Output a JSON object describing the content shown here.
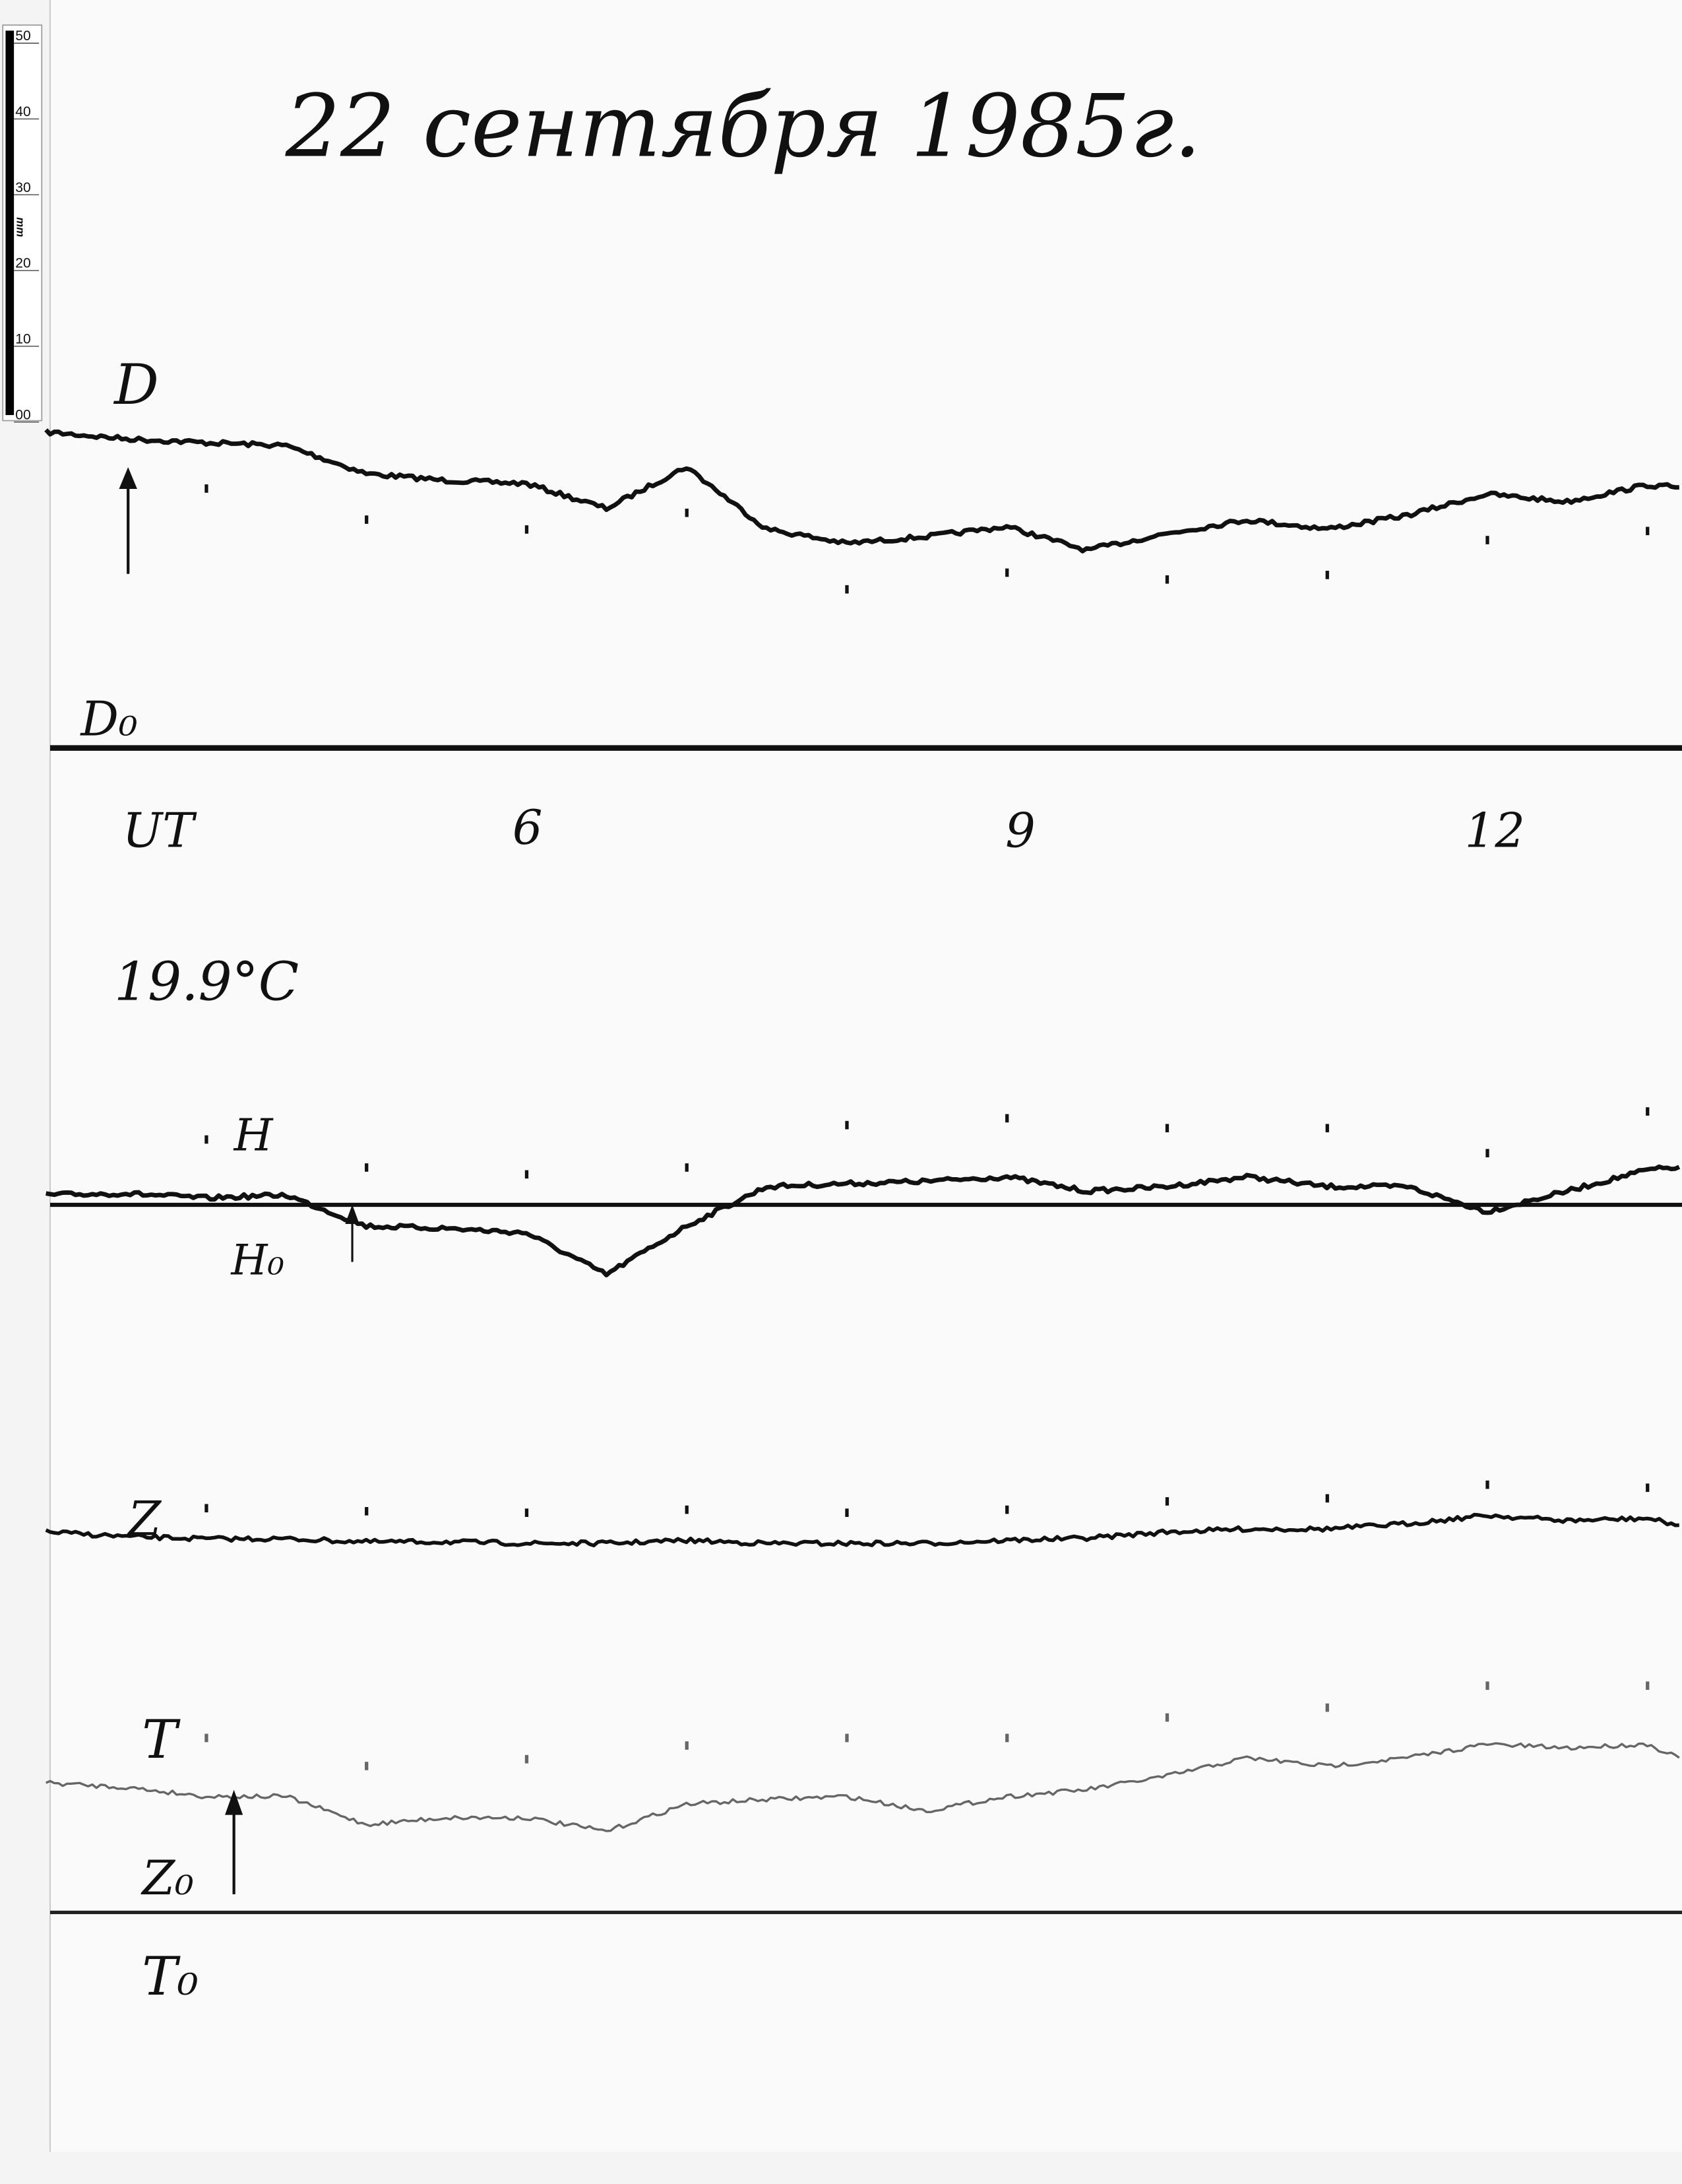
{
  "title": "22 сентября 1985г.",
  "ruler": {
    "ticks": [
      "50",
      "40",
      "30",
      "20",
      "10",
      "00"
    ],
    "unit": "mm"
  },
  "labels": {
    "D": "D",
    "D0": "D₀",
    "UT": "UT",
    "temp": "19.9°C",
    "H": "H",
    "H0": "H₀",
    "Z": "Z",
    "T": "T",
    "Z0": "Z₀",
    "T0": "T₀"
  },
  "chart_data": {
    "type": "line",
    "title": "22 сентября 1985г.",
    "xlabel": "UT",
    "x_ticks": [
      {
        "label": "6",
        "value": 6
      },
      {
        "label": "9",
        "value": 9
      },
      {
        "label": "12",
        "value": 12
      }
    ],
    "xlim": [
      3.0,
      13.2
    ],
    "y_unit": "mm",
    "hour_marks": [
      4,
      5,
      6,
      7,
      8,
      9,
      10,
      11,
      12,
      13
    ],
    "x": [
      3.0,
      3.5,
      4,
      4.5,
      5,
      5.5,
      6,
      6.5,
      7,
      7.5,
      8,
      8.5,
      9,
      9.5,
      10,
      10.5,
      11,
      11.5,
      12,
      12.5,
      13,
      13.2
    ],
    "series": [
      {
        "name": "D",
        "baseline": "D₀",
        "color": "#111111",
        "values": [
          41.7,
          40.8,
          40.3,
          39.9,
          36.2,
          35.3,
          34.9,
          31.6,
          37.1,
          28.9,
          27.0,
          27.9,
          29.2,
          26.1,
          28.3,
          30.1,
          28.9,
          30.7,
          33.5,
          32.5,
          34.7,
          34.4
        ]
      },
      {
        "name": "H",
        "baseline": "H₀",
        "color": "#111111",
        "values": [
          1.3,
          1.5,
          0.9,
          1.3,
          -2.8,
          -3.1,
          -3.7,
          -9.2,
          -2.8,
          2.4,
          2.8,
          3.1,
          3.7,
          1.8,
          2.4,
          3.7,
          2.4,
          2.4,
          -0.9,
          1.8,
          4.6,
          5.0
        ]
      },
      {
        "name": "Z",
        "baseline": "Z₀",
        "color": "#111111",
        "values": [
          50.2,
          49.6,
          49.3,
          49.3,
          48.9,
          48.9,
          48.7,
          48.7,
          49.1,
          48.7,
          48.7,
          48.7,
          49.1,
          49.4,
          50.2,
          50.6,
          50.6,
          51.3,
          52.4,
          51.7,
          52.0,
          51.1
        ]
      },
      {
        "name": "T",
        "baseline": "T₀",
        "color": "#666666",
        "values": [
          17.1,
          16.5,
          15.3,
          15.3,
          11.6,
          12.5,
          12.5,
          10.7,
          14.3,
          14.9,
          15.3,
          13.4,
          15.3,
          16.2,
          18.0,
          20.4,
          19.3,
          20.4,
          22.2,
          21.7,
          22.2,
          20.4
        ]
      }
    ],
    "grid": false
  }
}
